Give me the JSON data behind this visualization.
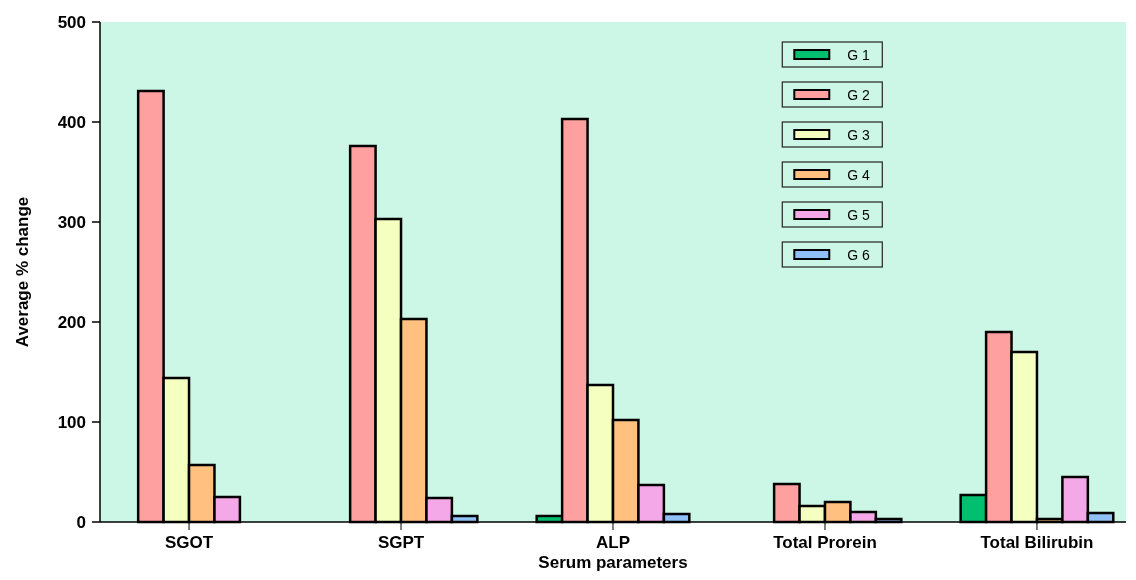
{
  "chart_data": {
    "type": "bar",
    "xlabel": "Serum parameters",
    "ylabel": "Average % change",
    "categories": [
      "SGOT",
      "SGPT",
      "ALP",
      "Total Prorein",
      "Total Bilirubin"
    ],
    "series": [
      {
        "name": "G 1",
        "color": "#00c070",
        "values": [
          0,
          null,
          6,
          null,
          27
        ]
      },
      {
        "name": "G 2",
        "color": "#ffa0a0",
        "values": [
          431,
          376,
          403,
          38,
          190
        ]
      },
      {
        "name": "G 3",
        "color": "#f5ffc0",
        "values": [
          144,
          303,
          137,
          16,
          170
        ]
      },
      {
        "name": "G 4",
        "color": "#ffc080",
        "values": [
          57,
          203,
          102,
          20,
          3
        ]
      },
      {
        "name": "G 5",
        "color": "#f5a8e8",
        "values": [
          25,
          24,
          37,
          10,
          45
        ]
      },
      {
        "name": "G 6",
        "color": "#90c0f8",
        "values": [
          null,
          6,
          8,
          3,
          9
        ]
      }
    ],
    "ylim": [
      0,
      500
    ],
    "yticks": [
      0,
      100,
      200,
      300,
      400,
      500
    ],
    "legend": "top right",
    "grid": false
  }
}
